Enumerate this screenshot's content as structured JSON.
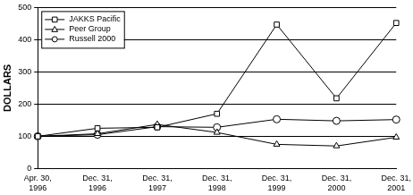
{
  "chart_data": {
    "type": "line",
    "categories": [
      "Apr. 30, 1996",
      "Dec. 31, 1996",
      "Dec. 31, 1997",
      "Dec. 31, 1998",
      "Dec. 31, 1999",
      "Dec. 31, 2000",
      "Dec. 31, 2001"
    ],
    "series": [
      {
        "name": "JAKKS Pacific",
        "color": "#000000",
        "marker": "square",
        "values": [
          100,
          125,
          128,
          170,
          447,
          218,
          452
        ]
      },
      {
        "name": "Peer Group",
        "color": "#000000",
        "marker": "triangle",
        "values": [
          100,
          108,
          137,
          112,
          75,
          70,
          97
        ]
      },
      {
        "name": "Russell 2000",
        "color": "#000000",
        "marker": "circle",
        "values": [
          100,
          105,
          130,
          128,
          153,
          148,
          152
        ]
      }
    ],
    "y_label": "DOLLARS",
    "ylim": [
      0,
      500
    ],
    "yticks": [
      0,
      100,
      200,
      300,
      400,
      500
    ],
    "grid": true,
    "legend": "upper left"
  }
}
